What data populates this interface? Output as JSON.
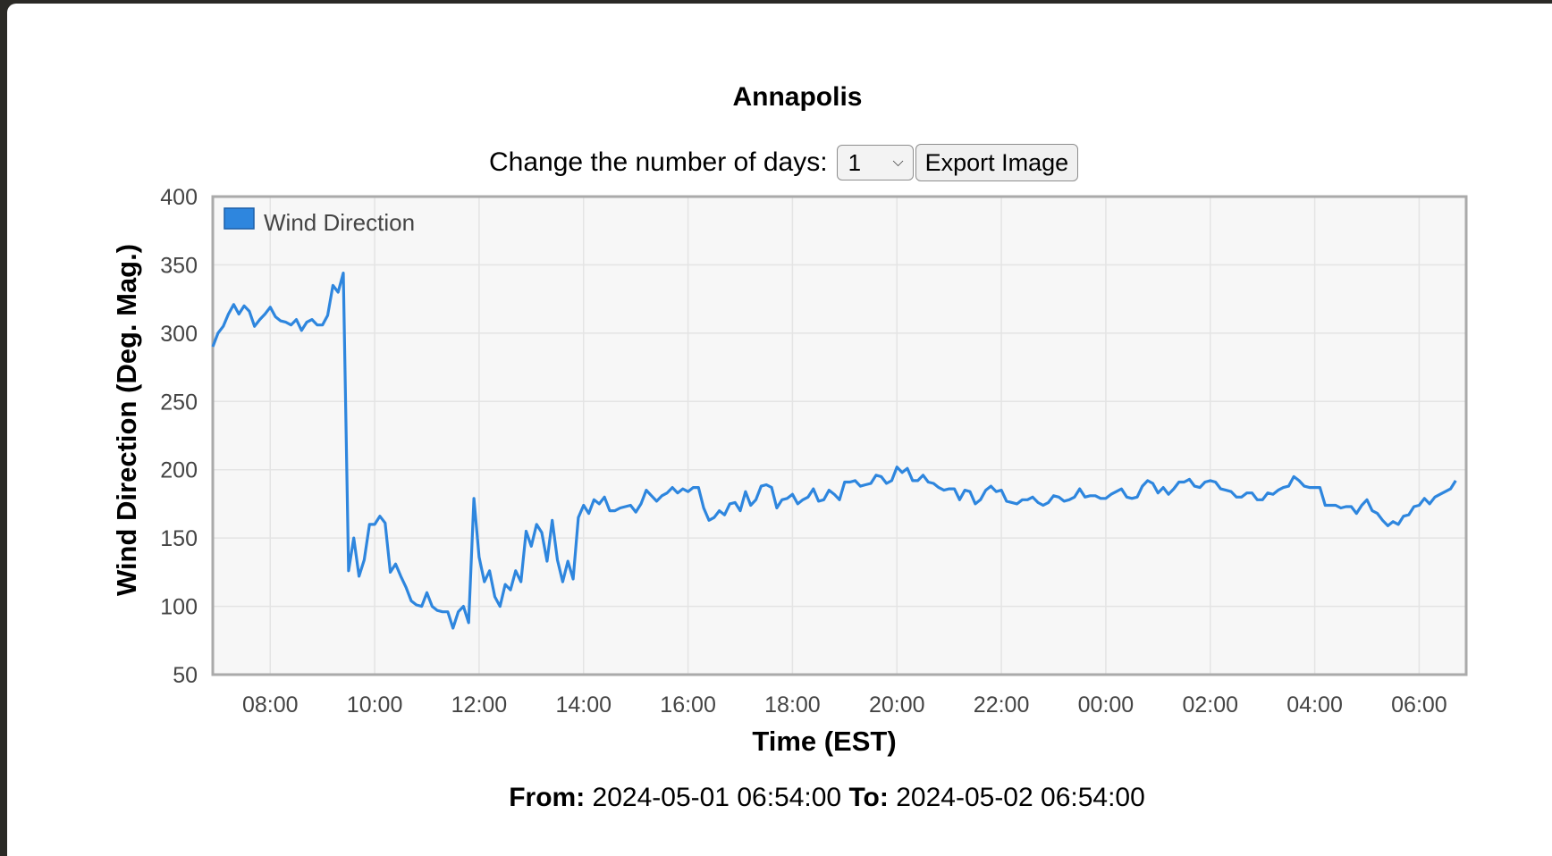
{
  "title": "Annapolis",
  "controls": {
    "days_label": "Change the number of days:",
    "days_selected": "1",
    "export_label": "Export Image"
  },
  "footer": {
    "from_label": "From:",
    "from_value": "2024-05-01 06:54:00",
    "to_label": "To:",
    "to_value": "2024-05-02 06:54:00"
  },
  "colors": {
    "series": "#2e86de",
    "plot_background": "#f7f7f7",
    "plot_border": "#aaaaaa",
    "grid": "#e4e4e4"
  },
  "chart_data": {
    "type": "line",
    "xlabel": "Time (EST)",
    "ylabel": "Wind Direction (Deg. Mag.)",
    "ylim": [
      50,
      400
    ],
    "yticks": [
      50,
      100,
      150,
      200,
      250,
      300,
      350,
      400
    ],
    "xlim": [
      "2024-05-01 06:54",
      "2024-05-02 06:54"
    ],
    "xticks": [
      "08:00",
      "10:00",
      "12:00",
      "14:00",
      "16:00",
      "18:00",
      "20:00",
      "22:00",
      "00:00",
      "02:00",
      "04:00",
      "06:00"
    ],
    "grid": true,
    "legend": "top-left",
    "series": [
      {
        "name": "Wind Direction",
        "points": [
          [
            "2024-05-01 06:54",
            290
          ],
          [
            "2024-05-01 07:00",
            300
          ],
          [
            "2024-05-01 07:06",
            305
          ],
          [
            "2024-05-01 07:12",
            314
          ],
          [
            "2024-05-01 07:18",
            321
          ],
          [
            "2024-05-01 07:24",
            314
          ],
          [
            "2024-05-01 07:30",
            320
          ],
          [
            "2024-05-01 07:36",
            316
          ],
          [
            "2024-05-01 07:42",
            305
          ],
          [
            "2024-05-01 07:48",
            310
          ],
          [
            "2024-05-01 07:54",
            314
          ],
          [
            "2024-05-01 08:00",
            319
          ],
          [
            "2024-05-01 08:06",
            312
          ],
          [
            "2024-05-01 08:12",
            309
          ],
          [
            "2024-05-01 08:18",
            308
          ],
          [
            "2024-05-01 08:24",
            306
          ],
          [
            "2024-05-01 08:30",
            310
          ],
          [
            "2024-05-01 08:36",
            302
          ],
          [
            "2024-05-01 08:42",
            308
          ],
          [
            "2024-05-01 08:48",
            310
          ],
          [
            "2024-05-01 08:54",
            306
          ],
          [
            "2024-05-01 09:00",
            306
          ],
          [
            "2024-05-01 09:06",
            313
          ],
          [
            "2024-05-01 09:12",
            335
          ],
          [
            "2024-05-01 09:18",
            330
          ],
          [
            "2024-05-01 09:24",
            344
          ],
          [
            "2024-05-01 09:30",
            126
          ],
          [
            "2024-05-01 09:36",
            150
          ],
          [
            "2024-05-01 09:42",
            122
          ],
          [
            "2024-05-01 09:48",
            134
          ],
          [
            "2024-05-01 09:54",
            160
          ],
          [
            "2024-05-01 10:00",
            160
          ],
          [
            "2024-05-01 10:06",
            166
          ],
          [
            "2024-05-01 10:12",
            161
          ],
          [
            "2024-05-01 10:18",
            125
          ],
          [
            "2024-05-01 10:24",
            131
          ],
          [
            "2024-05-01 10:30",
            122
          ],
          [
            "2024-05-01 10:36",
            114
          ],
          [
            "2024-05-01 10:42",
            104
          ],
          [
            "2024-05-01 10:48",
            101
          ],
          [
            "2024-05-01 10:54",
            100
          ],
          [
            "2024-05-01 11:00",
            110
          ],
          [
            "2024-05-01 11:06",
            100
          ],
          [
            "2024-05-01 11:12",
            97
          ],
          [
            "2024-05-01 11:18",
            96
          ],
          [
            "2024-05-01 11:24",
            96
          ],
          [
            "2024-05-01 11:30",
            84
          ],
          [
            "2024-05-01 11:36",
            96
          ],
          [
            "2024-05-01 11:42",
            100
          ],
          [
            "2024-05-01 11:48",
            88
          ],
          [
            "2024-05-01 11:54",
            179
          ],
          [
            "2024-05-01 12:00",
            136
          ],
          [
            "2024-05-01 12:06",
            118
          ],
          [
            "2024-05-01 12:12",
            126
          ],
          [
            "2024-05-01 12:18",
            107
          ],
          [
            "2024-05-01 12:24",
            100
          ],
          [
            "2024-05-01 12:30",
            116
          ],
          [
            "2024-05-01 12:36",
            112
          ],
          [
            "2024-05-01 12:42",
            126
          ],
          [
            "2024-05-01 12:48",
            118
          ],
          [
            "2024-05-01 12:54",
            155
          ],
          [
            "2024-05-01 13:00",
            144
          ],
          [
            "2024-05-01 13:06",
            160
          ],
          [
            "2024-05-01 13:12",
            154
          ],
          [
            "2024-05-01 13:18",
            133
          ],
          [
            "2024-05-01 13:24",
            163
          ],
          [
            "2024-05-01 13:30",
            134
          ],
          [
            "2024-05-01 13:36",
            118
          ],
          [
            "2024-05-01 13:42",
            133
          ],
          [
            "2024-05-01 13:48",
            120
          ],
          [
            "2024-05-01 13:54",
            165
          ],
          [
            "2024-05-01 14:00",
            174
          ],
          [
            "2024-05-01 14:06",
            168
          ],
          [
            "2024-05-01 14:12",
            178
          ],
          [
            "2024-05-01 14:18",
            175
          ],
          [
            "2024-05-01 14:24",
            180
          ],
          [
            "2024-05-01 14:30",
            170
          ],
          [
            "2024-05-01 14:36",
            170
          ],
          [
            "2024-05-01 14:42",
            172
          ],
          [
            "2024-05-01 14:48",
            173
          ],
          [
            "2024-05-01 14:54",
            174
          ],
          [
            "2024-05-01 15:00",
            169
          ],
          [
            "2024-05-01 15:06",
            175
          ],
          [
            "2024-05-01 15:12",
            185
          ],
          [
            "2024-05-01 15:18",
            181
          ],
          [
            "2024-05-01 15:24",
            177
          ],
          [
            "2024-05-01 15:30",
            181
          ],
          [
            "2024-05-01 15:36",
            183
          ],
          [
            "2024-05-01 15:42",
            187
          ],
          [
            "2024-05-01 15:48",
            183
          ],
          [
            "2024-05-01 15:54",
            186
          ],
          [
            "2024-05-01 16:00",
            184
          ],
          [
            "2024-05-01 16:06",
            187
          ],
          [
            "2024-05-01 16:12",
            187
          ],
          [
            "2024-05-01 16:18",
            172
          ],
          [
            "2024-05-01 16:24",
            163
          ],
          [
            "2024-05-01 16:30",
            165
          ],
          [
            "2024-05-01 16:36",
            170
          ],
          [
            "2024-05-01 16:42",
            167
          ],
          [
            "2024-05-01 16:48",
            175
          ],
          [
            "2024-05-01 16:54",
            176
          ],
          [
            "2024-05-01 17:00",
            170
          ],
          [
            "2024-05-01 17:06",
            184
          ],
          [
            "2024-05-01 17:12",
            174
          ],
          [
            "2024-05-01 17:18",
            178
          ],
          [
            "2024-05-01 17:24",
            188
          ],
          [
            "2024-05-01 17:30",
            189
          ],
          [
            "2024-05-01 17:36",
            187
          ],
          [
            "2024-05-01 17:42",
            172
          ],
          [
            "2024-05-01 17:48",
            178
          ],
          [
            "2024-05-01 17:54",
            179
          ],
          [
            "2024-05-01 18:00",
            182
          ],
          [
            "2024-05-01 18:06",
            175
          ],
          [
            "2024-05-01 18:12",
            178
          ],
          [
            "2024-05-01 18:18",
            180
          ],
          [
            "2024-05-01 18:24",
            186
          ],
          [
            "2024-05-01 18:30",
            177
          ],
          [
            "2024-05-01 18:36",
            178
          ],
          [
            "2024-05-01 18:42",
            185
          ],
          [
            "2024-05-01 18:48",
            182
          ],
          [
            "2024-05-01 18:54",
            178
          ],
          [
            "2024-05-01 19:00",
            191
          ],
          [
            "2024-05-01 19:06",
            191
          ],
          [
            "2024-05-01 19:12",
            192
          ],
          [
            "2024-05-01 19:18",
            188
          ],
          [
            "2024-05-01 19:24",
            189
          ],
          [
            "2024-05-01 19:30",
            190
          ],
          [
            "2024-05-01 19:36",
            196
          ],
          [
            "2024-05-01 19:42",
            195
          ],
          [
            "2024-05-01 19:48",
            190
          ],
          [
            "2024-05-01 19:54",
            192
          ],
          [
            "2024-05-01 20:00",
            202
          ],
          [
            "2024-05-01 20:06",
            198
          ],
          [
            "2024-05-01 20:12",
            201
          ],
          [
            "2024-05-01 20:18",
            192
          ],
          [
            "2024-05-01 20:24",
            192
          ],
          [
            "2024-05-01 20:30",
            196
          ],
          [
            "2024-05-01 20:36",
            191
          ],
          [
            "2024-05-01 20:42",
            190
          ],
          [
            "2024-05-01 20:48",
            187
          ],
          [
            "2024-05-01 20:54",
            185
          ],
          [
            "2024-05-01 21:00",
            186
          ],
          [
            "2024-05-01 21:06",
            186
          ],
          [
            "2024-05-01 21:12",
            178
          ],
          [
            "2024-05-01 21:18",
            185
          ],
          [
            "2024-05-01 21:24",
            184
          ],
          [
            "2024-05-01 21:30",
            175
          ],
          [
            "2024-05-01 21:36",
            178
          ],
          [
            "2024-05-01 21:42",
            185
          ],
          [
            "2024-05-01 21:48",
            188
          ],
          [
            "2024-05-01 21:54",
            184
          ],
          [
            "2024-05-01 22:00",
            185
          ],
          [
            "2024-05-01 22:06",
            177
          ],
          [
            "2024-05-01 22:12",
            176
          ],
          [
            "2024-05-01 22:18",
            175
          ],
          [
            "2024-05-01 22:24",
            178
          ],
          [
            "2024-05-01 22:30",
            178
          ],
          [
            "2024-05-01 22:36",
            180
          ],
          [
            "2024-05-01 22:42",
            176
          ],
          [
            "2024-05-01 22:48",
            174
          ],
          [
            "2024-05-01 22:54",
            176
          ],
          [
            "2024-05-01 23:00",
            181
          ],
          [
            "2024-05-01 23:06",
            180
          ],
          [
            "2024-05-01 23:12",
            177
          ],
          [
            "2024-05-01 23:18",
            178
          ],
          [
            "2024-05-01 23:24",
            180
          ],
          [
            "2024-05-01 23:30",
            186
          ],
          [
            "2024-05-01 23:36",
            180
          ],
          [
            "2024-05-01 23:42",
            181
          ],
          [
            "2024-05-01 23:48",
            181
          ],
          [
            "2024-05-01 23:54",
            179
          ],
          [
            "2024-05-02 00:00",
            179
          ],
          [
            "2024-05-02 00:06",
            182
          ],
          [
            "2024-05-02 00:12",
            184
          ],
          [
            "2024-05-02 00:18",
            186
          ],
          [
            "2024-05-02 00:24",
            180
          ],
          [
            "2024-05-02 00:30",
            179
          ],
          [
            "2024-05-02 00:36",
            180
          ],
          [
            "2024-05-02 00:42",
            188
          ],
          [
            "2024-05-02 00:48",
            192
          ],
          [
            "2024-05-02 00:54",
            190
          ],
          [
            "2024-05-02 01:00",
            183
          ],
          [
            "2024-05-02 01:06",
            187
          ],
          [
            "2024-05-02 01:12",
            182
          ],
          [
            "2024-05-02 01:18",
            186
          ],
          [
            "2024-05-02 01:24",
            191
          ],
          [
            "2024-05-02 01:30",
            191
          ],
          [
            "2024-05-02 01:36",
            193
          ],
          [
            "2024-05-02 01:42",
            188
          ],
          [
            "2024-05-02 01:48",
            187
          ],
          [
            "2024-05-02 01:54",
            191
          ],
          [
            "2024-05-02 02:00",
            192
          ],
          [
            "2024-05-02 02:06",
            191
          ],
          [
            "2024-05-02 02:12",
            186
          ],
          [
            "2024-05-02 02:18",
            185
          ],
          [
            "2024-05-02 02:24",
            184
          ],
          [
            "2024-05-02 02:30",
            180
          ],
          [
            "2024-05-02 02:36",
            180
          ],
          [
            "2024-05-02 02:42",
            183
          ],
          [
            "2024-05-02 02:48",
            183
          ],
          [
            "2024-05-02 02:54",
            178
          ],
          [
            "2024-05-02 03:00",
            178
          ],
          [
            "2024-05-02 03:06",
            183
          ],
          [
            "2024-05-02 03:12",
            182
          ],
          [
            "2024-05-02 03:18",
            185
          ],
          [
            "2024-05-02 03:24",
            187
          ],
          [
            "2024-05-02 03:30",
            188
          ],
          [
            "2024-05-02 03:36",
            195
          ],
          [
            "2024-05-02 03:42",
            192
          ],
          [
            "2024-05-02 03:48",
            188
          ],
          [
            "2024-05-02 03:54",
            187
          ],
          [
            "2024-05-02 04:00",
            187
          ],
          [
            "2024-05-02 04:06",
            187
          ],
          [
            "2024-05-02 04:12",
            174
          ],
          [
            "2024-05-02 04:18",
            174
          ],
          [
            "2024-05-02 04:24",
            174
          ],
          [
            "2024-05-02 04:30",
            172
          ],
          [
            "2024-05-02 04:36",
            173
          ],
          [
            "2024-05-02 04:42",
            173
          ],
          [
            "2024-05-02 04:48",
            168
          ],
          [
            "2024-05-02 04:54",
            174
          ],
          [
            "2024-05-02 05:00",
            178
          ],
          [
            "2024-05-02 05:06",
            170
          ],
          [
            "2024-05-02 05:12",
            168
          ],
          [
            "2024-05-02 05:18",
            163
          ],
          [
            "2024-05-02 05:24",
            159
          ],
          [
            "2024-05-02 05:30",
            162
          ],
          [
            "2024-05-02 05:36",
            160
          ],
          [
            "2024-05-02 05:42",
            166
          ],
          [
            "2024-05-02 05:48",
            167
          ],
          [
            "2024-05-02 05:54",
            173
          ],
          [
            "2024-05-02 06:00",
            174
          ],
          [
            "2024-05-02 06:06",
            179
          ],
          [
            "2024-05-02 06:12",
            175
          ],
          [
            "2024-05-02 06:18",
            180
          ],
          [
            "2024-05-02 06:24",
            182
          ],
          [
            "2024-05-02 06:30",
            184
          ],
          [
            "2024-05-02 06:36",
            186
          ],
          [
            "2024-05-02 06:42",
            192
          ]
        ]
      }
    ]
  }
}
